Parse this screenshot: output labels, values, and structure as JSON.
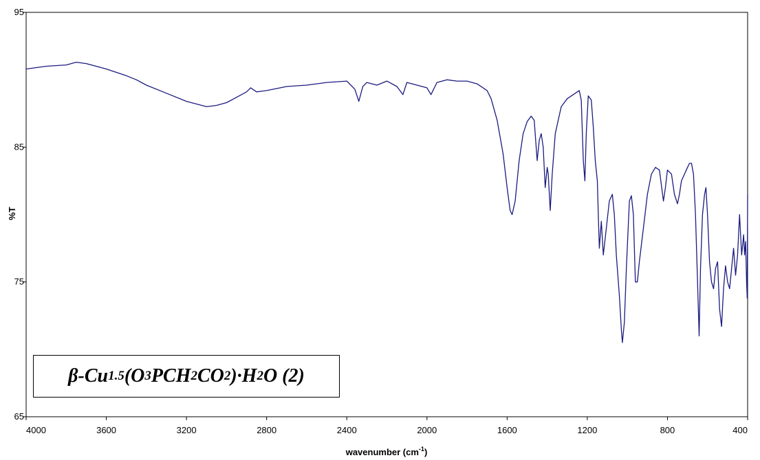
{
  "chart_data": {
    "type": "line",
    "title": "",
    "xlabel": "wavenumber (cm",
    "xlabel_sup": "-1",
    "xlabel_suffix": ")",
    "ylabel": "%T",
    "xlim": [
      4000,
      400
    ],
    "ylim": [
      65,
      95
    ],
    "x_reversed": true,
    "grid": false,
    "line_color": "#1a1a80",
    "x_ticks": [
      "4000",
      "3600",
      "3200",
      "2800",
      "2400",
      "2000",
      "1600",
      "1200",
      "800",
      "400"
    ],
    "y_ticks": [
      "95",
      "85",
      "75",
      "65"
    ],
    "annotation": {
      "beta": "β",
      "cu": "-Cu",
      "cu_sub": "1.5",
      "o": "(O",
      "o_sub": "3",
      "pch": "PCH",
      "pch_sub": "2",
      "co": "CO",
      "co_sub": "2",
      "dot_h": ")·H",
      "h_sub": "2",
      "tail": "O (2)"
    },
    "series": [
      {
        "points": [
          [
            4000,
            90.8
          ],
          [
            3900,
            91.0
          ],
          [
            3800,
            91.1
          ],
          [
            3750,
            91.3
          ],
          [
            3700,
            91.2
          ],
          [
            3600,
            90.8
          ],
          [
            3500,
            90.3
          ],
          [
            3450,
            90.0
          ],
          [
            3400,
            89.6
          ],
          [
            3300,
            89.0
          ],
          [
            3200,
            88.4
          ],
          [
            3100,
            88.0
          ],
          [
            3050,
            88.1
          ],
          [
            3000,
            88.3
          ],
          [
            2950,
            88.7
          ],
          [
            2900,
            89.1
          ],
          [
            2880,
            89.4
          ],
          [
            2850,
            89.1
          ],
          [
            2800,
            89.2
          ],
          [
            2700,
            89.5
          ],
          [
            2600,
            89.6
          ],
          [
            2500,
            89.8
          ],
          [
            2400,
            89.9
          ],
          [
            2360,
            89.3
          ],
          [
            2340,
            88.4
          ],
          [
            2320,
            89.5
          ],
          [
            2300,
            89.8
          ],
          [
            2250,
            89.6
          ],
          [
            2200,
            89.9
          ],
          [
            2150,
            89.5
          ],
          [
            2120,
            88.9
          ],
          [
            2100,
            89.8
          ],
          [
            2050,
            89.6
          ],
          [
            2000,
            89.4
          ],
          [
            1980,
            88.9
          ],
          [
            1950,
            89.8
          ],
          [
            1900,
            90.0
          ],
          [
            1850,
            89.9
          ],
          [
            1800,
            89.9
          ],
          [
            1750,
            89.7
          ],
          [
            1700,
            89.2
          ],
          [
            1680,
            88.6
          ],
          [
            1650,
            87.0
          ],
          [
            1620,
            84.5
          ],
          [
            1600,
            82.0
          ],
          [
            1585,
            80.3
          ],
          [
            1575,
            80.0
          ],
          [
            1560,
            81.0
          ],
          [
            1540,
            84.0
          ],
          [
            1520,
            86.0
          ],
          [
            1500,
            86.9
          ],
          [
            1480,
            87.3
          ],
          [
            1465,
            87.0
          ],
          [
            1450,
            84.0
          ],
          [
            1440,
            85.5
          ],
          [
            1430,
            86.0
          ],
          [
            1420,
            85.0
          ],
          [
            1410,
            82.0
          ],
          [
            1400,
            83.5
          ],
          [
            1395,
            83.0
          ],
          [
            1385,
            80.3
          ],
          [
            1375,
            83.0
          ],
          [
            1360,
            86.0
          ],
          [
            1330,
            88.0
          ],
          [
            1300,
            88.6
          ],
          [
            1260,
            89.0
          ],
          [
            1240,
            89.2
          ],
          [
            1230,
            88.5
          ],
          [
            1220,
            84.0
          ],
          [
            1212,
            82.5
          ],
          [
            1205,
            86.0
          ],
          [
            1195,
            88.8
          ],
          [
            1180,
            88.5
          ],
          [
            1170,
            86.5
          ],
          [
            1160,
            84.0
          ],
          [
            1150,
            82.5
          ],
          [
            1145,
            80.0
          ],
          [
            1140,
            77.5
          ],
          [
            1130,
            79.5
          ],
          [
            1120,
            77.0
          ],
          [
            1105,
            79.0
          ],
          [
            1090,
            81.0
          ],
          [
            1075,
            81.5
          ],
          [
            1065,
            80.0
          ],
          [
            1055,
            77.0
          ],
          [
            1040,
            74.0
          ],
          [
            1030,
            71.5
          ],
          [
            1025,
            70.5
          ],
          [
            1015,
            72.0
          ],
          [
            1005,
            76.0
          ],
          [
            990,
            81.0
          ],
          [
            980,
            81.4
          ],
          [
            970,
            80.0
          ],
          [
            960,
            75.0
          ],
          [
            950,
            75.0
          ],
          [
            940,
            76.5
          ],
          [
            920,
            79.0
          ],
          [
            900,
            81.5
          ],
          [
            880,
            83.0
          ],
          [
            860,
            83.5
          ],
          [
            840,
            83.3
          ],
          [
            820,
            81.0
          ],
          [
            810,
            82.0
          ],
          [
            800,
            83.3
          ],
          [
            780,
            83.0
          ],
          [
            765,
            81.5
          ],
          [
            750,
            80.8
          ],
          [
            740,
            81.5
          ],
          [
            730,
            82.5
          ],
          [
            700,
            83.5
          ],
          [
            690,
            83.8
          ],
          [
            680,
            83.8
          ],
          [
            670,
            83.0
          ],
          [
            660,
            80.0
          ],
          [
            650,
            75.0
          ],
          [
            642,
            71.0
          ],
          [
            635,
            76.0
          ],
          [
            625,
            80.0
          ],
          [
            615,
            81.5
          ],
          [
            608,
            82.0
          ],
          [
            600,
            80.0
          ],
          [
            590,
            76.5
          ],
          [
            580,
            75.0
          ],
          [
            570,
            74.5
          ],
          [
            560,
            76.0
          ],
          [
            550,
            76.5
          ],
          [
            540,
            73.0
          ],
          [
            530,
            71.7
          ],
          [
            520,
            74.5
          ],
          [
            510,
            76.2
          ],
          [
            500,
            75.0
          ],
          [
            490,
            74.5
          ],
          [
            480,
            76.0
          ],
          [
            470,
            77.5
          ],
          [
            460,
            75.5
          ],
          [
            450,
            77.0
          ],
          [
            440,
            80.0
          ],
          [
            430,
            77.0
          ],
          [
            420,
            78.5
          ],
          [
            415,
            77.0
          ],
          [
            410,
            78.0
          ],
          [
            405,
            75.0
          ],
          [
            402,
            73.8
          ],
          [
            400,
            81.5
          ]
        ]
      }
    ]
  }
}
